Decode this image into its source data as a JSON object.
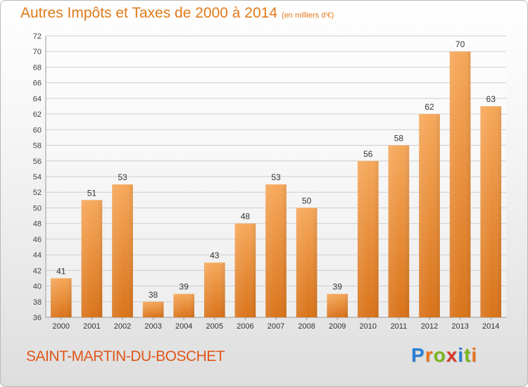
{
  "chart_data": {
    "type": "bar",
    "title": "Autres Impôts et Taxes de 2000 à 2014",
    "subtitle": "(en milliers d'€)",
    "categories": [
      "2000",
      "2001",
      "2002",
      "2003",
      "2004",
      "2005",
      "2006",
      "2007",
      "2008",
      "2009",
      "2010",
      "2011",
      "2012",
      "2013",
      "2014"
    ],
    "values": [
      41,
      51,
      53,
      38,
      39,
      43,
      48,
      53,
      50,
      39,
      56,
      58,
      62,
      70,
      63
    ],
    "ylim": [
      36,
      72
    ],
    "yticks": [
      36,
      38,
      40,
      42,
      44,
      46,
      48,
      50,
      52,
      54,
      56,
      58,
      60,
      62,
      64,
      66,
      68,
      70,
      72
    ],
    "grid": true,
    "data_labels": true,
    "colors": {
      "bar_top": "#f6a85a",
      "bar_bottom": "#d9731a",
      "title": "#e07a1a",
      "grid": "#cfcfcf"
    }
  },
  "footer": {
    "place": "SAINT-MARTIN-DU-BOSCHET",
    "place_color": "#e0561a"
  },
  "brand": {
    "name": "Proxiti",
    "letter_colors": [
      "#2a7fd4",
      "#e8731a",
      "#7ab51d",
      "#d63a2a",
      "#2a7fd4",
      "#7ab51d",
      "#e8731a"
    ]
  }
}
